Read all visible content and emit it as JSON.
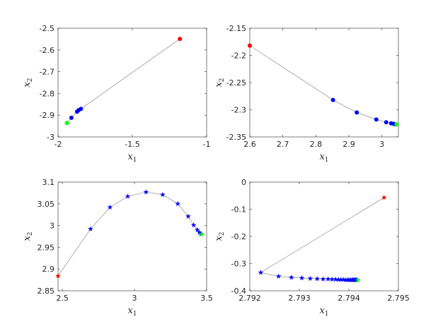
{
  "chart_data": [
    {
      "type": "scatter",
      "marker": "dot",
      "xlabel": "x1",
      "ylabel": "x2",
      "xlim": [
        -2,
        -1
      ],
      "ylim": [
        -3,
        -2.5
      ],
      "xticks": [
        -2,
        -1.5,
        -1
      ],
      "xtick_labels": [
        "-2",
        "-1.5",
        "-1"
      ],
      "yticks": [
        -3,
        -2.9,
        -2.8,
        -2.7,
        -2.6,
        -2.5
      ],
      "ytick_labels": [
        "-3",
        "-2.9",
        "-2.8",
        "-2.7",
        "-2.6",
        "-2.5"
      ],
      "path": {
        "x": [
          -1.18,
          -1.846,
          -1.862,
          -1.872,
          -1.91,
          -1.94
        ],
        "y": [
          -2.549,
          -2.871,
          -2.877,
          -2.884,
          -2.912,
          -2.936
        ]
      },
      "start": {
        "x": -1.18,
        "y": -2.549,
        "color": "#ff0000"
      },
      "iterates": {
        "x": [
          -1.846,
          -1.862,
          -1.872,
          -1.91
        ],
        "y": [
          -2.871,
          -2.877,
          -2.884,
          -2.912
        ],
        "color": "#0000ff"
      },
      "end": {
        "x": -1.94,
        "y": -2.936,
        "color": "#00ff00"
      }
    },
    {
      "type": "scatter",
      "marker": "dot",
      "xlabel": "x1",
      "ylabel": "x2",
      "xlim": [
        2.6,
        3.05
      ],
      "ylim": [
        -2.35,
        -2.15
      ],
      "xticks": [
        2.6,
        2.7,
        2.8,
        2.9,
        3
      ],
      "xtick_labels": [
        "2.6",
        "2.7",
        "2.8",
        "2.9",
        "3"
      ],
      "yticks": [
        -2.35,
        -2.3,
        -2.25,
        -2.2,
        -2.15
      ],
      "ytick_labels": [
        "-2.35",
        "-2.3",
        "-2.25",
        "-2.2",
        "-2.15"
      ],
      "path": {
        "x": [
          2.6,
          2.852,
          2.924,
          2.983,
          3.013,
          3.028,
          3.036,
          3.041,
          3.044
        ],
        "y": [
          -2.182,
          -2.282,
          -2.305,
          -2.318,
          -2.323,
          -2.325,
          -2.326,
          -2.327,
          -2.327
        ]
      },
      "start": {
        "x": 2.6,
        "y": -2.182,
        "color": "#ff0000"
      },
      "iterates": {
        "x": [
          2.852,
          2.924,
          2.983,
          3.013,
          3.028,
          3.036,
          3.041
        ],
        "y": [
          -2.282,
          -2.305,
          -2.318,
          -2.323,
          -2.325,
          -2.326,
          -2.327
        ],
        "color": "#0000ff"
      },
      "end": {
        "x": 3.044,
        "y": -2.327,
        "color": "#00ff00"
      }
    },
    {
      "type": "line",
      "marker": "star",
      "xlabel": "x1",
      "ylabel": "x2",
      "xlim": [
        2.47,
        3.5
      ],
      "ylim": [
        2.85,
        3.1
      ],
      "xticks": [
        2.5,
        3,
        3.5
      ],
      "xtick_labels": [
        "2.5",
        "3",
        "3.5"
      ],
      "yticks": [
        2.85,
        2.9,
        2.95,
        3,
        3.05,
        3.1
      ],
      "ytick_labels": [
        "2.85",
        "2.9",
        "2.95",
        "3",
        "3.05",
        "3.1"
      ],
      "path": {
        "x": [
          2.47,
          2.695,
          2.83,
          2.953,
          3.08,
          3.195,
          3.3,
          3.372,
          3.41,
          3.435,
          3.45,
          3.46,
          3.465
        ],
        "y": [
          2.884,
          2.992,
          3.042,
          3.067,
          3.077,
          3.071,
          3.05,
          3.021,
          3.001,
          2.99,
          2.984,
          2.981,
          2.98
        ]
      },
      "start": {
        "x": 2.47,
        "y": 2.884,
        "color": "#ff0000"
      },
      "iterates": {
        "x": [
          2.695,
          2.83,
          2.953,
          3.08,
          3.195,
          3.3,
          3.372,
          3.41,
          3.435,
          3.45,
          3.46
        ],
        "y": [
          2.992,
          3.042,
          3.067,
          3.077,
          3.071,
          3.05,
          3.021,
          3.001,
          2.99,
          2.984,
          2.981
        ],
        "color": "#0000ff"
      },
      "end": {
        "x": 3.465,
        "y": 2.98,
        "color": "#00ff00"
      }
    },
    {
      "type": "line",
      "marker": "star",
      "xlabel": "x1",
      "ylabel": "x2",
      "xlim": [
        2.792,
        2.795
      ],
      "ylim": [
        -0.4,
        0
      ],
      "xticks": [
        2.792,
        2.793,
        2.794,
        2.795
      ],
      "xtick_labels": [
        "2.792",
        "2.793",
        "2.794",
        "2.795"
      ],
      "yticks": [
        -0.4,
        -0.3,
        -0.2,
        -0.1,
        0
      ],
      "ytick_labels": [
        "-0.4",
        "-0.3",
        "-0.2",
        "-0.1",
        "0"
      ],
      "path": {
        "x": [
          2.79471,
          2.79222,
          2.79258,
          2.79284,
          2.79305,
          2.79322,
          2.79336,
          2.79348,
          2.79358,
          2.79366,
          2.79373,
          2.79379,
          2.79384,
          2.79389,
          2.79393,
          2.79397,
          2.794,
          2.79403,
          2.79406,
          2.79408,
          2.7941,
          2.79412,
          2.79414,
          2.79416,
          2.79418
        ],
        "y": [
          -0.057,
          -0.333,
          -0.347,
          -0.351,
          -0.353,
          -0.355,
          -0.356,
          -0.357,
          -0.357,
          -0.358,
          -0.358,
          -0.359,
          -0.359,
          -0.359,
          -0.36,
          -0.36,
          -0.36,
          -0.36,
          -0.36,
          -0.36,
          -0.36,
          -0.36,
          -0.36,
          -0.36,
          -0.361
        ]
      },
      "start": {
        "x": 2.79471,
        "y": -0.057,
        "color": "#ff0000"
      },
      "iterates": {
        "x": [
          2.79222,
          2.79258,
          2.79284,
          2.79305,
          2.79322,
          2.79336,
          2.79348,
          2.79358,
          2.79366,
          2.79373,
          2.79379,
          2.79384,
          2.79389,
          2.79393,
          2.79397,
          2.794,
          2.79403,
          2.79406,
          2.79408,
          2.7941,
          2.79412,
          2.79414,
          2.79416
        ],
        "y": [
          -0.333,
          -0.347,
          -0.351,
          -0.353,
          -0.355,
          -0.356,
          -0.357,
          -0.357,
          -0.358,
          -0.358,
          -0.359,
          -0.359,
          -0.359,
          -0.36,
          -0.36,
          -0.36,
          -0.36,
          -0.36,
          -0.36,
          -0.36,
          -0.36,
          -0.36,
          -0.36
        ],
        "color": "#0000ff"
      },
      "end": {
        "x": 2.79418,
        "y": -0.361,
        "color": "#00ff00"
      }
    }
  ]
}
